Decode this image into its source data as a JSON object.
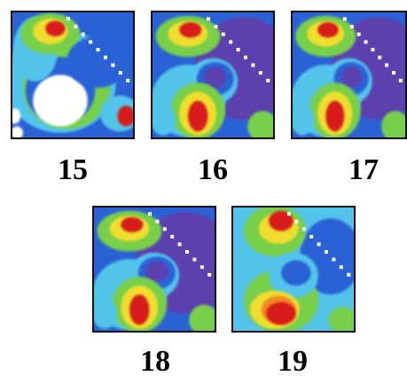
{
  "panels": [
    {
      "label": "15"
    },
    {
      "label": "16"
    },
    {
      "label": "17"
    },
    {
      "label": "18"
    },
    {
      "label": "19"
    }
  ]
}
